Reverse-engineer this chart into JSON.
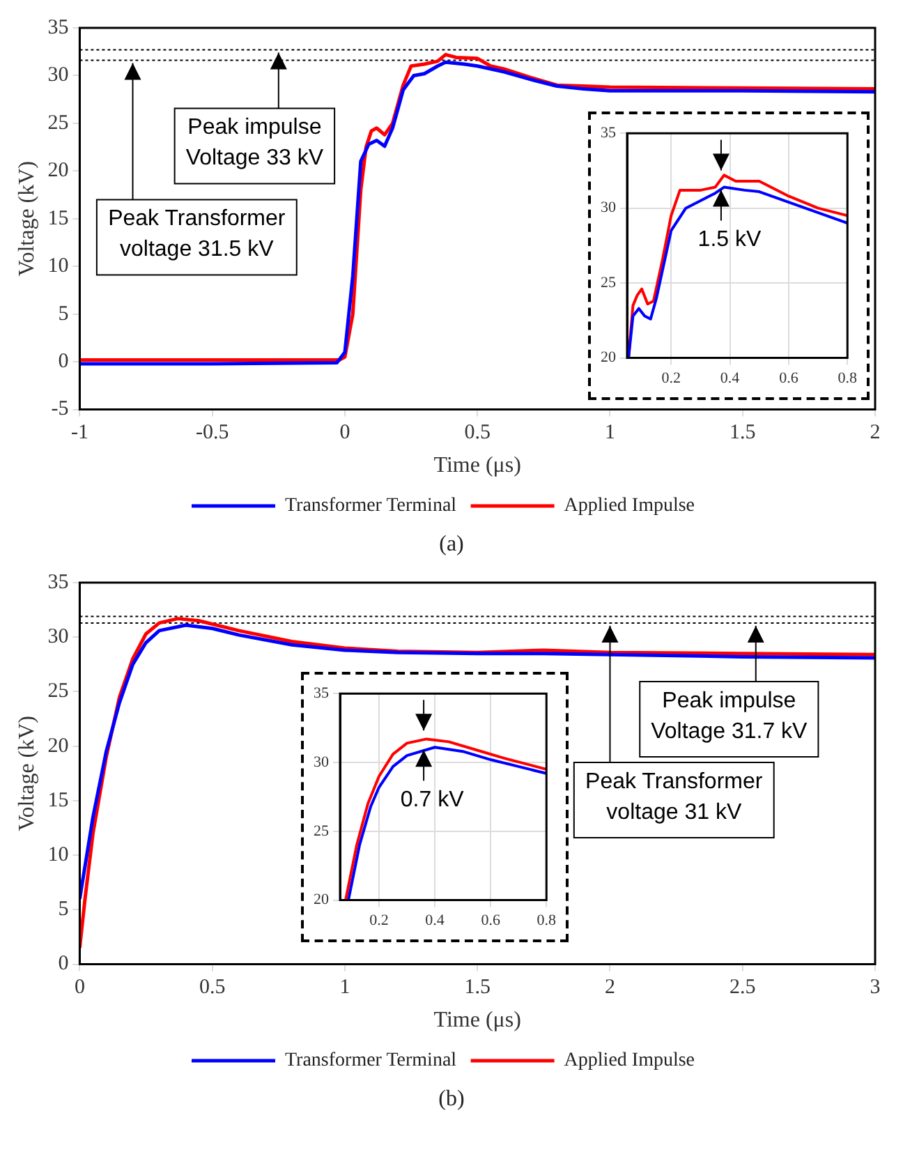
{
  "chart_data": [
    {
      "type": "line",
      "xlabel": "Time (μs)",
      "ylabel": "Voltage (kV)",
      "xlim": [
        -1,
        2
      ],
      "ylim": [
        -5,
        35
      ],
      "xticks": [
        -1,
        -0.5,
        0,
        0.5,
        1,
        1.5,
        2
      ],
      "yticks": [
        -5,
        0,
        5,
        10,
        15,
        20,
        25,
        30,
        35
      ],
      "grid": false,
      "legend": "bottom",
      "series": [
        {
          "name": "Transformer Terminal",
          "color": "#0000ff",
          "x": [
            -1,
            -0.5,
            -0.03,
            0,
            0.03,
            0.06,
            0.09,
            0.12,
            0.15,
            0.18,
            0.22,
            0.26,
            0.3,
            0.35,
            0.38,
            0.45,
            0.5,
            0.6,
            0.7,
            0.8,
            0.9,
            1,
            1.5,
            2
          ],
          "values": [
            -0.2,
            -0.2,
            -0.1,
            1,
            9,
            21,
            22.8,
            23.2,
            22.6,
            24.5,
            28.5,
            30,
            30.2,
            31,
            31.4,
            31.2,
            31,
            30.4,
            29.6,
            28.9,
            28.6,
            28.4,
            28.4,
            28.3
          ]
        },
        {
          "name": "Applied Impulse",
          "color": "#ff0000",
          "x": [
            -1,
            -0.5,
            -0.02,
            0,
            0.03,
            0.06,
            0.08,
            0.1,
            0.12,
            0.15,
            0.18,
            0.22,
            0.25,
            0.3,
            0.35,
            0.38,
            0.42,
            0.5,
            0.55,
            0.6,
            0.7,
            0.8,
            0.9,
            1,
            1.5,
            2
          ],
          "values": [
            0.2,
            0.2,
            0.2,
            0.5,
            5,
            18,
            22.5,
            24.2,
            24.5,
            23.8,
            25,
            29,
            31,
            31.2,
            31.5,
            32.2,
            31.9,
            31.8,
            31,
            30.7,
            29.8,
            29,
            28.9,
            28.8,
            28.7,
            28.6
          ]
        }
      ],
      "ref_lines": [
        {
          "axis": "y",
          "value": 32.7,
          "line_style": "dotted"
        },
        {
          "axis": "y",
          "value": 31.6,
          "line_style": "dotted"
        }
      ],
      "annotations": [
        "(a)",
        {
          "text": "Peak impulse\nVoltage 33 kV",
          "x": -0.25,
          "y": 32.7
        },
        {
          "text": "Peak Transformer\nvoltage 31.5 kV",
          "x": -0.8,
          "y": 31.6
        }
      ]
    },
    {
      "type": "line",
      "xlim": [
        0.05,
        0.8
      ],
      "ylim": [
        20,
        35
      ],
      "xticks": [
        0.2,
        0.4,
        0.6,
        0.8
      ],
      "yticks": [
        20,
        25,
        30,
        35
      ],
      "grid": true,
      "series": [
        {
          "color": "#0000ff",
          "x": [
            0.055,
            0.07,
            0.09,
            0.11,
            0.13,
            0.15,
            0.2,
            0.25,
            0.3,
            0.35,
            0.38,
            0.45,
            0.5,
            0.6,
            0.7,
            0.8
          ],
          "values": [
            20,
            22.8,
            23.3,
            22.8,
            22.6,
            24,
            28.5,
            30,
            30.5,
            31,
            31.4,
            31.2,
            31.1,
            30.4,
            29.7,
            29
          ]
        },
        {
          "color": "#ff0000",
          "x": [
            0.055,
            0.07,
            0.085,
            0.1,
            0.12,
            0.14,
            0.17,
            0.2,
            0.23,
            0.3,
            0.35,
            0.38,
            0.42,
            0.5,
            0.6,
            0.7,
            0.8
          ],
          "values": [
            20,
            23.5,
            24.2,
            24.6,
            23.6,
            23.8,
            26.5,
            29.5,
            31.2,
            31.2,
            31.4,
            32.2,
            31.8,
            31.8,
            30.8,
            30,
            29.5
          ]
        }
      ],
      "annotations": [
        {
          "text": "1.5 kV",
          "x": 0.37,
          "y": 31.4
        }
      ]
    },
    {
      "type": "line",
      "xlabel": "Time (μs)",
      "ylabel": "Voltage (kV)",
      "xlim": [
        0,
        3
      ],
      "ylim": [
        0,
        35
      ],
      "xticks": [
        0,
        0.5,
        1,
        1.5,
        2,
        2.5,
        3
      ],
      "yticks": [
        0,
        5,
        10,
        15,
        20,
        25,
        30,
        35
      ],
      "grid": false,
      "legend": "bottom",
      "series": [
        {
          "name": "Transformer Terminal",
          "color": "#0000ff",
          "x": [
            0,
            0.02,
            0.05,
            0.1,
            0.15,
            0.2,
            0.25,
            0.3,
            0.4,
            0.5,
            0.6,
            0.8,
            1,
            1.2,
            1.5,
            1.75,
            2,
            2.5,
            3
          ],
          "values": [
            6,
            9,
            13.5,
            19.5,
            24,
            27.5,
            29.5,
            30.6,
            31.1,
            30.8,
            30.2,
            29.3,
            28.8,
            28.6,
            28.5,
            28.5,
            28.4,
            28.2,
            28.1
          ]
        },
        {
          "name": "Applied Impulse",
          "color": "#ff0000",
          "x": [
            0,
            0.02,
            0.05,
            0.1,
            0.15,
            0.2,
            0.25,
            0.3,
            0.37,
            0.45,
            0.6,
            0.8,
            1,
            1.2,
            1.5,
            1.75,
            2,
            2.5,
            3
          ],
          "values": [
            1.5,
            6,
            12,
            19,
            24.5,
            28,
            30.3,
            31.3,
            31.7,
            31.5,
            30.6,
            29.6,
            29,
            28.7,
            28.6,
            28.8,
            28.6,
            28.5,
            28.4
          ]
        }
      ],
      "ref_lines": [
        {
          "axis": "y",
          "value": 31.9,
          "line_style": "dotted"
        },
        {
          "axis": "y",
          "value": 31.3,
          "line_style": "dotted"
        }
      ],
      "annotations": [
        "(b)",
        {
          "text": "Peak impulse\nVoltage 31.7 kV",
          "x": 2.55,
          "y": 31.3
        },
        {
          "text": "Peak Transformer\nvoltage 31 kV",
          "x": 2,
          "y": 31.3
        }
      ]
    },
    {
      "type": "line",
      "xlim": [
        0.06,
        0.8
      ],
      "ylim": [
        20,
        35
      ],
      "xticks": [
        0.2,
        0.4,
        0.6,
        0.8
      ],
      "yticks": [
        20,
        25,
        30,
        35
      ],
      "grid": true,
      "series": [
        {
          "color": "#0000ff",
          "x": [
            0.09,
            0.13,
            0.17,
            0.2,
            0.25,
            0.3,
            0.4,
            0.5,
            0.6,
            0.7,
            0.8
          ],
          "values": [
            20,
            24,
            26.8,
            28.2,
            29.7,
            30.5,
            31.1,
            30.8,
            30.2,
            29.7,
            29.2
          ]
        },
        {
          "color": "#ff0000",
          "x": [
            0.08,
            0.12,
            0.16,
            0.2,
            0.25,
            0.3,
            0.37,
            0.45,
            0.55,
            0.65,
            0.8
          ],
          "values": [
            20,
            24,
            27,
            29,
            30.6,
            31.4,
            31.7,
            31.5,
            30.9,
            30.3,
            29.5
          ]
        }
      ],
      "annotations": [
        {
          "text": "0.7 kV",
          "x": 0.36,
          "y": 31.1
        }
      ]
    }
  ]
}
